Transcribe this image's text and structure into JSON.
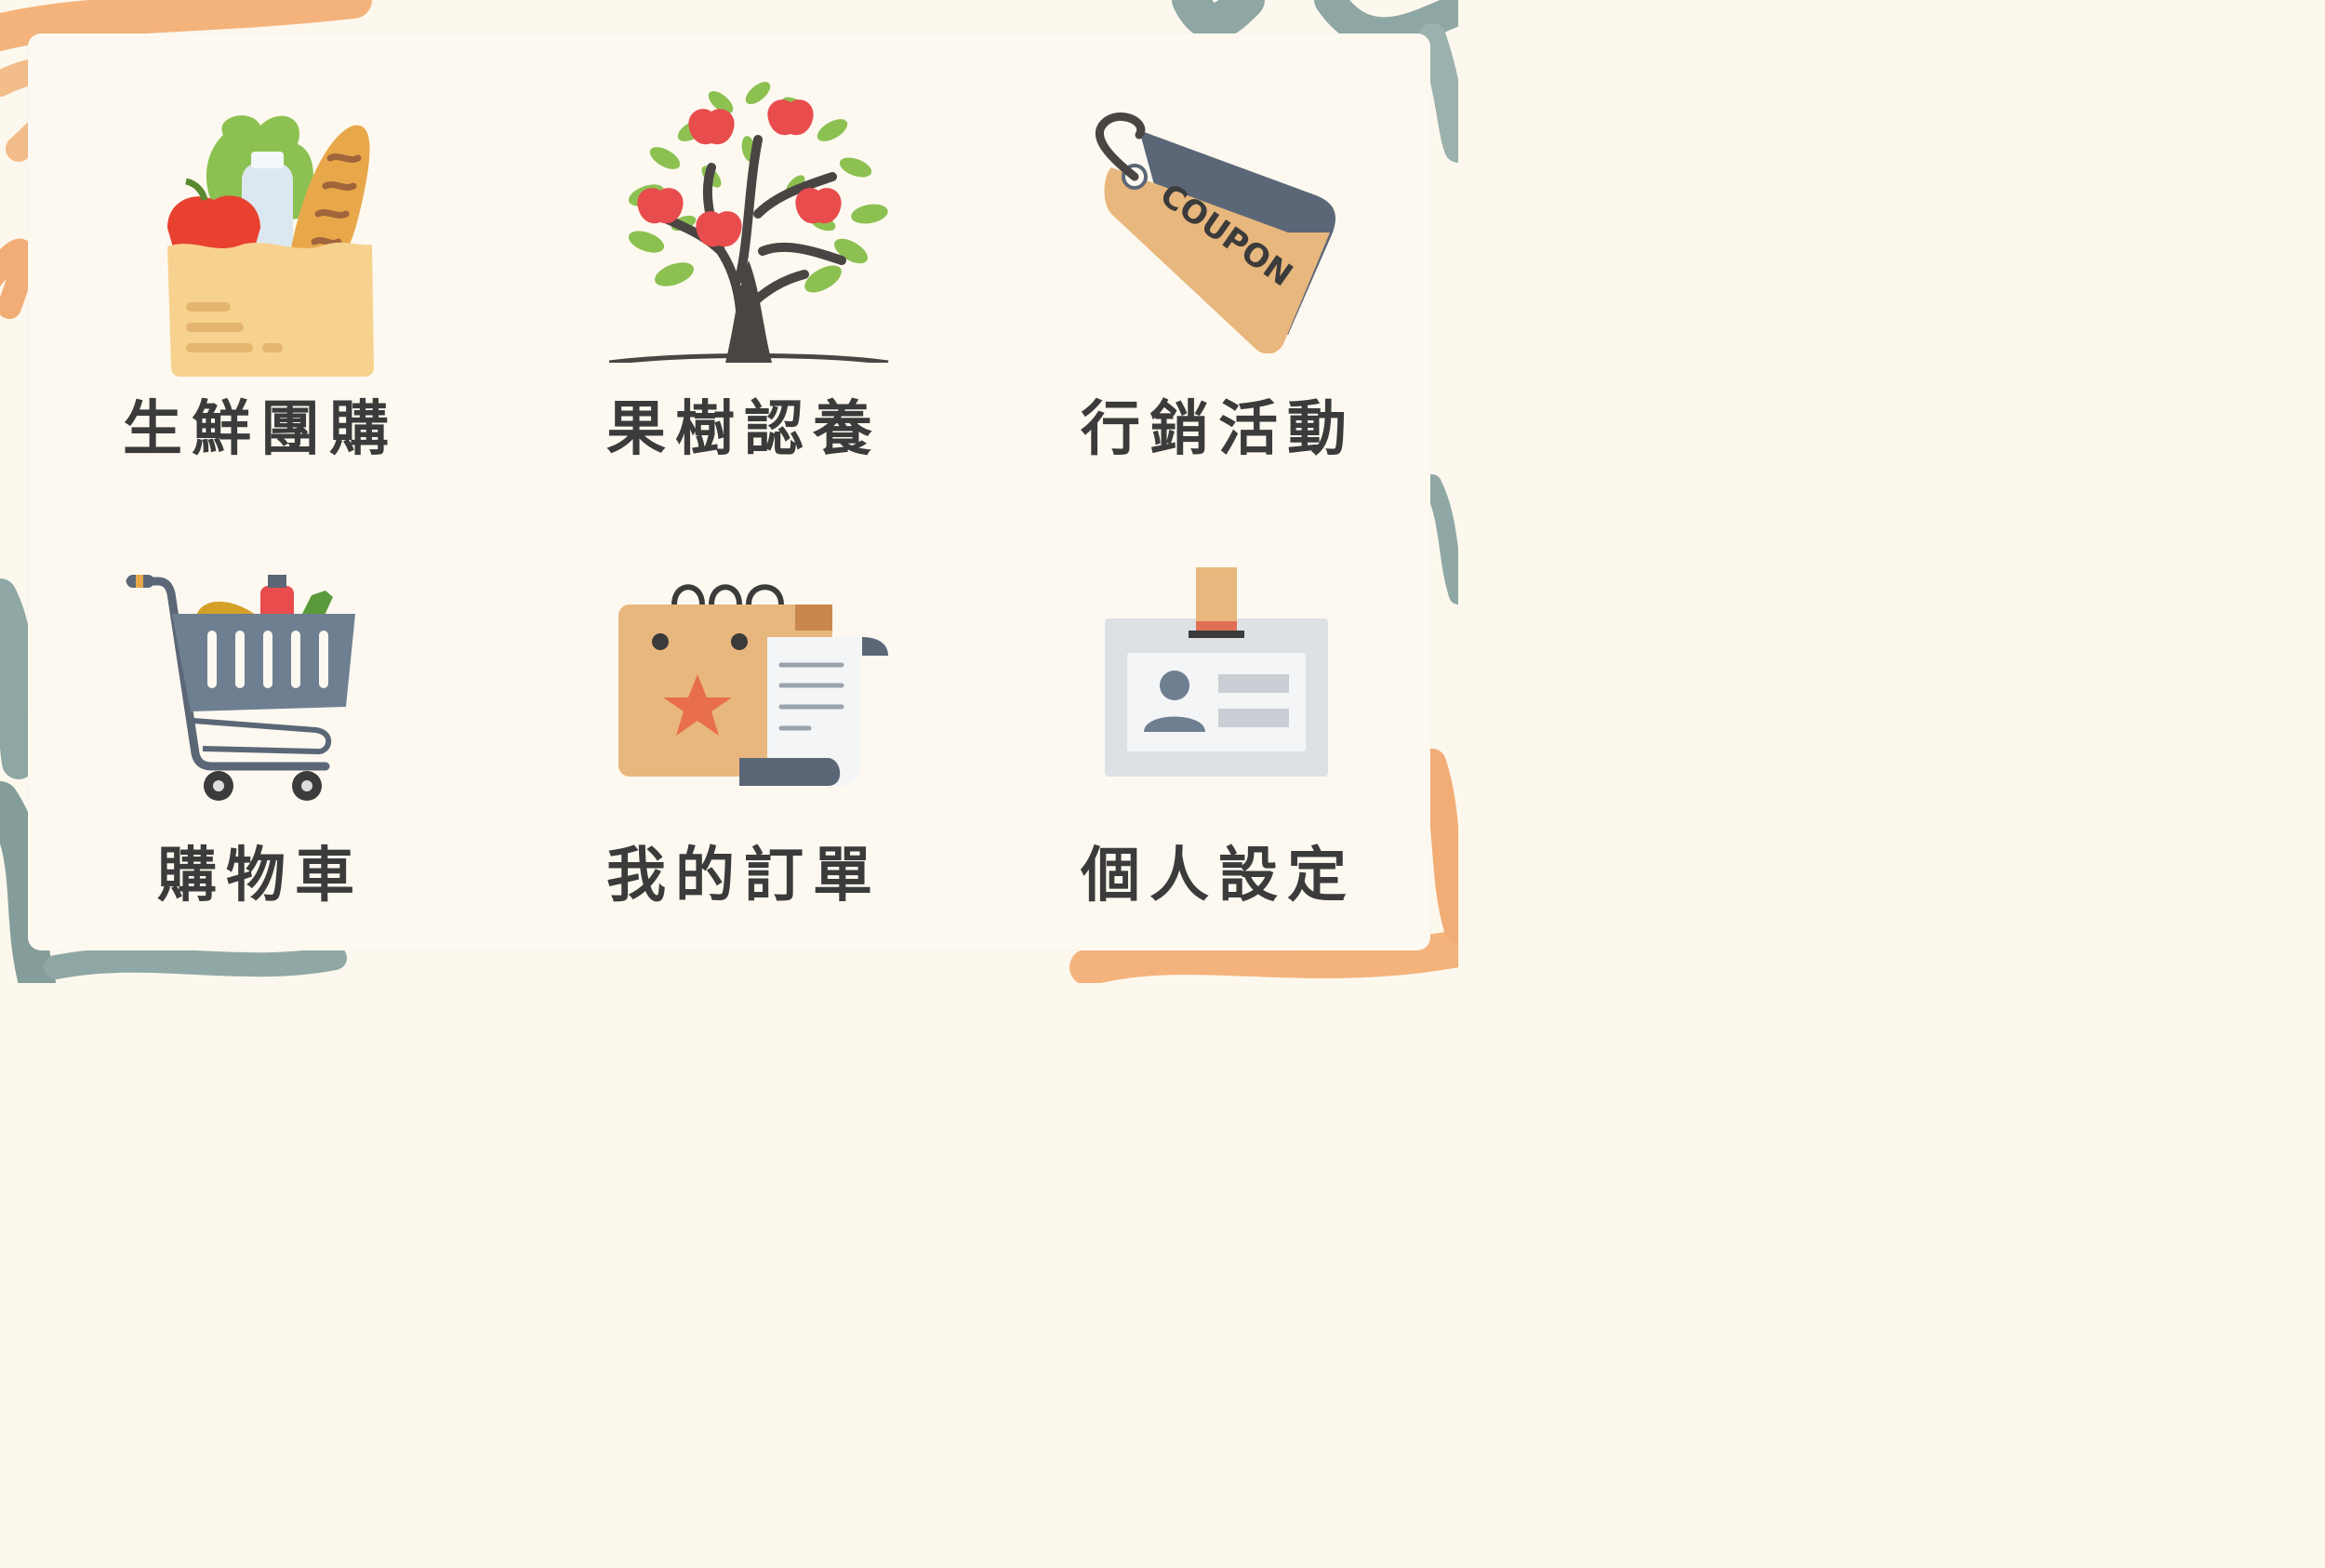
{
  "menu": {
    "items": [
      {
        "id": "group-buy",
        "label": "生鮮團購",
        "icon": "grocery-bag-icon"
      },
      {
        "id": "fruit-tree",
        "label": "果樹認養",
        "icon": "apple-tree-icon"
      },
      {
        "id": "marketing",
        "label": "行銷活動",
        "icon": "coupon-tag-icon",
        "icon_text": "COUPON"
      },
      {
        "id": "cart",
        "label": "購物車",
        "icon": "shopping-cart-icon"
      },
      {
        "id": "orders",
        "label": "我的訂單",
        "icon": "shopping-bag-receipt-icon"
      },
      {
        "id": "settings",
        "label": "個人設定",
        "icon": "id-badge-icon"
      }
    ]
  },
  "colors": {
    "background": "#fdf8ee",
    "brush_orange": "#f0a060",
    "brush_teal": "#7c9a98",
    "label_text": "#3b3b3b"
  }
}
